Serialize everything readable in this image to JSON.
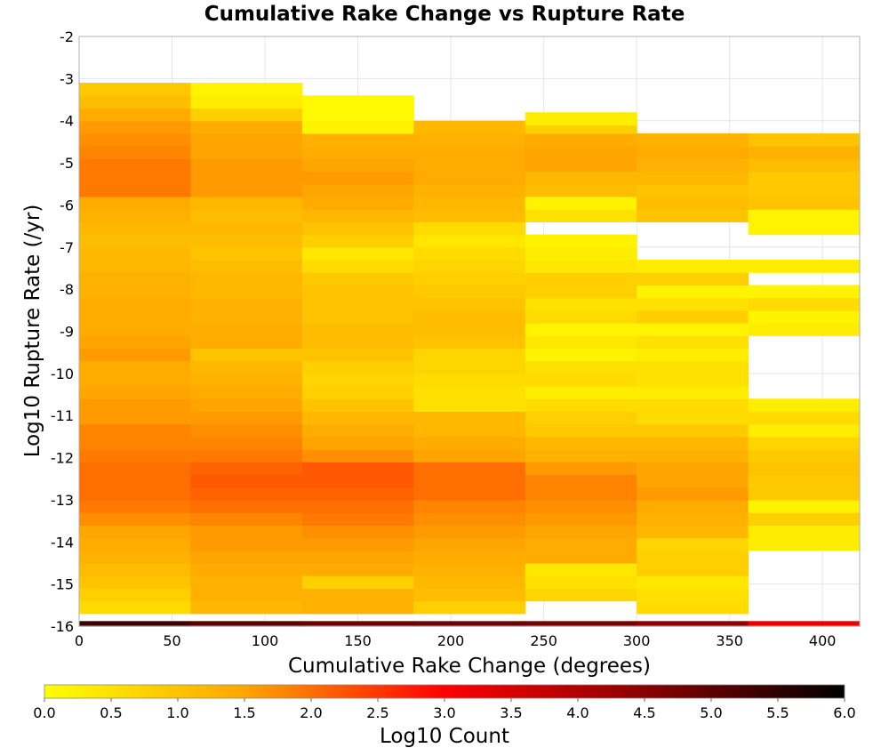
{
  "chart_data": {
    "type": "heatmap",
    "title": "Cumulative Rake Change vs Rupture Rate",
    "xlabel": "Cumulative Rake Change (degrees)",
    "ylabel": "Log10 Rupture Rate (/yr)",
    "xlim": [
      0,
      420
    ],
    "ylim": [
      -16,
      -2
    ],
    "x_ticks": [
      "0",
      "50",
      "100",
      "150",
      "200",
      "250",
      "300",
      "350",
      "400"
    ],
    "y_ticks": [
      "-2",
      "-3",
      "-4",
      "-5",
      "-6",
      "-7",
      "-8",
      "-9",
      "-10",
      "-11",
      "-12",
      "-13",
      "-14",
      "-15",
      "-16"
    ],
    "grid": true,
    "cell_value": "Log10 Count",
    "x_bin_width": 60,
    "y_bin_height": 0.3,
    "colorbar": {
      "label": "Log10 Count",
      "range": [
        0,
        6
      ],
      "ticks": [
        "0.0",
        "0.5",
        "1.0",
        "1.5",
        "2.0",
        "2.5",
        "3.0",
        "3.5",
        "4.0",
        "4.5",
        "5.0",
        "5.5",
        "6.0"
      ],
      "colors": [
        "#ffff00",
        "#ffa500",
        "#ff0000",
        "#8b0000",
        "#000000"
      ]
    },
    "columns": [
      {
        "x_start": 0,
        "cells": [
          [
            -16,
            5.3
          ],
          [
            -15.7,
            0.6
          ],
          [
            -15.4,
            0.8
          ],
          [
            -15.1,
            1.0
          ],
          [
            -14.8,
            1.1
          ],
          [
            -14.5,
            1.3
          ],
          [
            -14.2,
            1.4
          ],
          [
            -13.9,
            1.5
          ],
          [
            -13.6,
            1.7
          ],
          [
            -13.3,
            1.9
          ],
          [
            -13,
            2.0
          ],
          [
            -12.7,
            2.0
          ],
          [
            -12.4,
            2.0
          ],
          [
            -12.1,
            1.9
          ],
          [
            -11.8,
            1.8
          ],
          [
            -11.5,
            1.8
          ],
          [
            -11.2,
            1.6
          ],
          [
            -10.9,
            1.6
          ],
          [
            -10.6,
            1.5
          ],
          [
            -10.3,
            1.4
          ],
          [
            -10,
            1.4
          ],
          [
            -9.7,
            1.6
          ],
          [
            -9.4,
            1.5
          ],
          [
            -9.1,
            1.4
          ],
          [
            -8.8,
            1.4
          ],
          [
            -8.5,
            1.4
          ],
          [
            -8.2,
            1.3
          ],
          [
            -7.9,
            1.3
          ],
          [
            -7.6,
            1.2
          ],
          [
            -7.3,
            1.2
          ],
          [
            -7,
            1.1
          ],
          [
            -6.7,
            1.2
          ],
          [
            -6.4,
            1.3
          ],
          [
            -6.1,
            1.4
          ],
          [
            -5.8,
            1.9
          ],
          [
            -5.5,
            1.9
          ],
          [
            -5.2,
            1.9
          ],
          [
            -4.9,
            1.8
          ],
          [
            -4.6,
            1.7
          ],
          [
            -4.3,
            1.6
          ],
          [
            -4,
            1.4
          ],
          [
            -3.7,
            1.1
          ],
          [
            -3.4,
            0.9
          ]
        ]
      },
      {
        "x_start": 60,
        "cells": [
          [
            -16,
            5.0
          ],
          [
            -15.7,
            1.2
          ],
          [
            -15.4,
            1.3
          ],
          [
            -15.1,
            1.3
          ],
          [
            -14.8,
            1.4
          ],
          [
            -14.5,
            1.5
          ],
          [
            -14.2,
            1.6
          ],
          [
            -13.9,
            1.6
          ],
          [
            -13.6,
            1.8
          ],
          [
            -13.3,
            2.0
          ],
          [
            -13,
            2.1
          ],
          [
            -12.7,
            2.2
          ],
          [
            -12.4,
            2.1
          ],
          [
            -12.1,
            1.9
          ],
          [
            -11.8,
            1.8
          ],
          [
            -11.5,
            1.7
          ],
          [
            -11.2,
            1.6
          ],
          [
            -10.9,
            1.5
          ],
          [
            -10.6,
            1.4
          ],
          [
            -10.3,
            1.3
          ],
          [
            -10,
            1.2
          ],
          [
            -9.7,
            1.0
          ],
          [
            -9.4,
            1.4
          ],
          [
            -9.1,
            1.4
          ],
          [
            -8.8,
            1.3
          ],
          [
            -8.5,
            1.3
          ],
          [
            -8.2,
            1.2
          ],
          [
            -7.9,
            1.2
          ],
          [
            -7.6,
            1.1
          ],
          [
            -7.3,
            1.0
          ],
          [
            -7,
            1.1
          ],
          [
            -6.7,
            1.2
          ],
          [
            -6.4,
            1.1
          ],
          [
            -6.1,
            1.2
          ],
          [
            -5.8,
            1.6
          ],
          [
            -5.5,
            1.6
          ],
          [
            -5.2,
            1.6
          ],
          [
            -4.9,
            1.5
          ],
          [
            -4.6,
            1.5
          ],
          [
            -4.3,
            1.4
          ],
          [
            -4,
            0.8
          ],
          [
            -3.7,
            0.3
          ],
          [
            -3.4,
            0.2
          ]
        ]
      },
      {
        "x_start": 120,
        "cells": [
          [
            -16,
            4.8
          ],
          [
            -15.7,
            1.3
          ],
          [
            -15.4,
            1.3
          ],
          [
            -15.1,
            0.8
          ],
          [
            -14.8,
            1.4
          ],
          [
            -14.5,
            1.5
          ],
          [
            -14.2,
            1.6
          ],
          [
            -13.9,
            1.7
          ],
          [
            -13.6,
            1.9
          ],
          [
            -13.3,
            2.0
          ],
          [
            -13,
            2.1
          ],
          [
            -12.7,
            2.2
          ],
          [
            -12.4,
            2.2
          ],
          [
            -12.1,
            1.7
          ],
          [
            -11.8,
            1.5
          ],
          [
            -11.5,
            1.4
          ],
          [
            -11.2,
            1.2
          ],
          [
            -10.9,
            1.0
          ],
          [
            -10.6,
            0.8
          ],
          [
            -10.3,
            0.7
          ],
          [
            -10,
            0.8
          ],
          [
            -9.7,
            1.0
          ],
          [
            -9.4,
            1.1
          ],
          [
            -9.1,
            1.1
          ],
          [
            -8.8,
            1.0
          ],
          [
            -8.5,
            1.0
          ],
          [
            -8.2,
            1.0
          ],
          [
            -7.9,
            0.9
          ],
          [
            -7.6,
            0.6
          ],
          [
            -7.3,
            0.4
          ],
          [
            -7,
            0.8
          ],
          [
            -6.7,
            1.0
          ],
          [
            -6.4,
            1.2
          ],
          [
            -6.1,
            1.4
          ],
          [
            -5.8,
            1.5
          ],
          [
            -5.5,
            1.6
          ],
          [
            -5.2,
            1.5
          ],
          [
            -4.9,
            1.4
          ],
          [
            -4.6,
            1.3
          ],
          [
            -4.3,
            0.2
          ],
          [
            -4,
            0.1
          ],
          [
            -3.7,
            0.1
          ]
        ]
      },
      {
        "x_start": 180,
        "cells": [
          [
            -16,
            4.8
          ],
          [
            -15.7,
            0.8
          ],
          [
            -15.4,
            1.1
          ],
          [
            -15.1,
            1.2
          ],
          [
            -14.8,
            1.3
          ],
          [
            -14.5,
            1.4
          ],
          [
            -14.2,
            1.5
          ],
          [
            -13.9,
            1.6
          ],
          [
            -13.6,
            1.7
          ],
          [
            -13.3,
            1.8
          ],
          [
            -13,
            2.0
          ],
          [
            -12.7,
            2.0
          ],
          [
            -12.4,
            2.0
          ],
          [
            -12.1,
            1.5
          ],
          [
            -11.8,
            1.4
          ],
          [
            -11.5,
            1.2
          ],
          [
            -11.2,
            1.2
          ],
          [
            -10.9,
            0.5
          ],
          [
            -10.6,
            0.5
          ],
          [
            -10.3,
            0.6
          ],
          [
            -10,
            0.7
          ],
          [
            -9.7,
            0.7
          ],
          [
            -9.4,
            1.0
          ],
          [
            -9.1,
            1.1
          ],
          [
            -8.8,
            1.1
          ],
          [
            -8.5,
            1.0
          ],
          [
            -8.2,
            0.9
          ],
          [
            -7.9,
            0.8
          ],
          [
            -7.6,
            0.7
          ],
          [
            -7.3,
            0.6
          ],
          [
            -7,
            0.4
          ],
          [
            -6.7,
            0.6
          ],
          [
            -6.4,
            1.1
          ],
          [
            -6.1,
            1.2
          ],
          [
            -5.8,
            1.3
          ],
          [
            -5.5,
            1.4
          ],
          [
            -5.2,
            1.4
          ],
          [
            -4.9,
            1.4
          ],
          [
            -4.6,
            1.3
          ],
          [
            -4.3,
            1.2
          ]
        ]
      },
      {
        "x_start": 240,
        "cells": [
          [
            -16,
            4.7
          ],
          [
            -15.4,
            0.7
          ],
          [
            -15.1,
            0.5
          ],
          [
            -14.8,
            0.4
          ],
          [
            -14.5,
            1.4
          ],
          [
            -14.2,
            1.4
          ],
          [
            -13.9,
            1.5
          ],
          [
            -13.6,
            1.6
          ],
          [
            -13.3,
            1.7
          ],
          [
            -13,
            1.8
          ],
          [
            -12.7,
            1.8
          ],
          [
            -12.4,
            1.6
          ],
          [
            -12.1,
            1.3
          ],
          [
            -11.8,
            1.2
          ],
          [
            -11.5,
            0.9
          ],
          [
            -11.2,
            0.8
          ],
          [
            -10.9,
            0.6
          ],
          [
            -10.6,
            0.3
          ],
          [
            -10.3,
            0.6
          ],
          [
            -10,
            0.5
          ],
          [
            -9.7,
            0.2
          ],
          [
            -9.4,
            0.4
          ],
          [
            -9.1,
            0.2
          ],
          [
            -8.8,
            0.6
          ],
          [
            -8.5,
            0.5
          ],
          [
            -8.2,
            0.8
          ],
          [
            -7.9,
            0.8
          ],
          [
            -7.6,
            0.4
          ],
          [
            -7.3,
            0.3
          ],
          [
            -7,
            0.2
          ],
          [
            -6.4,
            0.5
          ],
          [
            -6.1,
            0.2
          ],
          [
            -5.8,
            1.1
          ],
          [
            -5.5,
            1.2
          ],
          [
            -5.2,
            1.5
          ],
          [
            -4.9,
            1.5
          ],
          [
            -4.6,
            1.4
          ],
          [
            -4.3,
            0.8
          ],
          [
            -4.1,
            0.3
          ]
        ]
      },
      {
        "x_start": 300,
        "cells": [
          [
            -16,
            4.5
          ],
          [
            -15.7,
            0.6
          ],
          [
            -15.4,
            0.5
          ],
          [
            -15.1,
            0.4
          ],
          [
            -14.8,
            0.8
          ],
          [
            -14.5,
            0.8
          ],
          [
            -14.2,
            0.7
          ],
          [
            -13.9,
            1.2
          ],
          [
            -13.6,
            1.3
          ],
          [
            -13.3,
            1.4
          ],
          [
            -13,
            1.6
          ],
          [
            -12.7,
            1.5
          ],
          [
            -12.4,
            1.5
          ],
          [
            -12.1,
            1.3
          ],
          [
            -11.8,
            1.2
          ],
          [
            -11.5,
            0.9
          ],
          [
            -11.2,
            0.6
          ],
          [
            -10.9,
            0.6
          ],
          [
            -10.6,
            0.3
          ],
          [
            -10.3,
            0.5
          ],
          [
            -10,
            0.5
          ],
          [
            -9.7,
            0.3
          ],
          [
            -9.4,
            0.5
          ],
          [
            -9.1,
            0.2
          ],
          [
            -8.8,
            0.8
          ],
          [
            -8.5,
            0.5
          ],
          [
            -8.2,
            0.2
          ],
          [
            -7.9,
            0.8
          ],
          [
            -7.6,
            0.3
          ],
          [
            -6.4,
            1.0
          ],
          [
            -6.1,
            1.1
          ],
          [
            -5.8,
            1.0
          ],
          [
            -5.5,
            1.2
          ],
          [
            -5.2,
            1.3
          ],
          [
            -4.9,
            1.4
          ],
          [
            -4.6,
            1.3
          ]
        ]
      },
      {
        "x_start": 360,
        "cells": [
          [
            -16,
            3.3
          ],
          [
            -14.2,
            0.3
          ],
          [
            -13.9,
            0.3
          ],
          [
            -13.6,
            0.8
          ],
          [
            -13.3,
            0.2
          ],
          [
            -13,
            0.9
          ],
          [
            -12.7,
            0.9
          ],
          [
            -12.4,
            1.0
          ],
          [
            -12.1,
            0.9
          ],
          [
            -11.8,
            0.7
          ],
          [
            -11.5,
            0.3
          ],
          [
            -11.2,
            0.6
          ],
          [
            -10.9,
            0.3
          ],
          [
            -9.1,
            0.3
          ],
          [
            -8.8,
            0.2
          ],
          [
            -8.5,
            0.6
          ],
          [
            -8.2,
            0.2
          ],
          [
            -7.6,
            0.3
          ],
          [
            -6.7,
            0.2
          ],
          [
            -6.4,
            0.2
          ],
          [
            -6.1,
            1.0
          ],
          [
            -5.8,
            0.9
          ],
          [
            -5.5,
            0.9
          ],
          [
            -5.2,
            1.1
          ],
          [
            -4.9,
            1.3
          ],
          [
            -4.6,
            1.0
          ]
        ]
      }
    ]
  }
}
